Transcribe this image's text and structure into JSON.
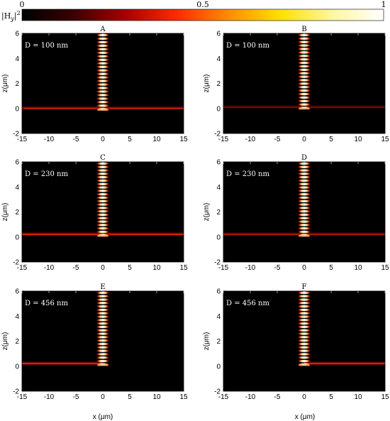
{
  "colorbar": {
    "label": "|H",
    "label_sub": "y",
    "label_sup": "2",
    "ticks": [
      "0",
      "0.5",
      "1"
    ],
    "colors": [
      "#000000",
      "#3b0000",
      "#a80000",
      "#ff2a00",
      "#ff8c00",
      "#ffe100",
      "#fff6a0",
      "#ffffff"
    ]
  },
  "axes_text": {
    "xlabel": "x (μm)",
    "ylabel": "z(μm)",
    "xticks": [
      "-15",
      "-10",
      "-5",
      "0",
      "5",
      "10",
      "15"
    ],
    "yticks": [
      "-2",
      "0",
      "2",
      "4",
      "6"
    ]
  },
  "chart_data": [
    {
      "type": "heatmap",
      "title": "A",
      "annotation": "D = 100 nm",
      "xlim": [
        -15,
        15
      ],
      "ylim": [
        -2,
        6
      ],
      "beam_center": 0,
      "beam_width": 2.5,
      "interface_z": 0,
      "interface_from": -15,
      "interface_to": 15,
      "interface_intensity": 0.7
    },
    {
      "type": "heatmap",
      "title": "B",
      "annotation": "D = 100 nm",
      "xlim": [
        -15,
        15
      ],
      "ylim": [
        -2,
        6
      ],
      "beam_center": 0,
      "beam_width": 2.5,
      "interface_z": 0.1,
      "interface_from": -15,
      "interface_to": 15,
      "interface_intensity": 0.35
    },
    {
      "type": "heatmap",
      "title": "C",
      "annotation": "D = 230 nm",
      "xlim": [
        -15,
        15
      ],
      "ylim": [
        -2,
        6
      ],
      "beam_center": 0,
      "beam_width": 2.5,
      "interface_z": 0.2,
      "interface_from": -15,
      "interface_to": 15,
      "interface_intensity": 0.75
    },
    {
      "type": "heatmap",
      "title": "D",
      "annotation": "D = 230 nm",
      "xlim": [
        -15,
        15
      ],
      "ylim": [
        -2,
        6
      ],
      "beam_center": 0,
      "beam_width": 2.5,
      "interface_z": 0.2,
      "interface_from": -15,
      "interface_to": 15,
      "interface_intensity": 0.55
    },
    {
      "type": "heatmap",
      "title": "E",
      "annotation": "D = 456 nm",
      "xlim": [
        -15,
        15
      ],
      "ylim": [
        -2,
        6
      ],
      "beam_center": 0,
      "beam_width": 2.5,
      "interface_z": 0.2,
      "interface_from": -15,
      "interface_to": 0,
      "interface_intensity": 0.8
    },
    {
      "type": "heatmap",
      "title": "F",
      "annotation": "D = 456 nm",
      "xlim": [
        -15,
        15
      ],
      "ylim": [
        -2,
        6
      ],
      "beam_center": 0,
      "beam_width": 2.5,
      "interface_z": 0.2,
      "interface_from": 0,
      "interface_to": 15,
      "interface_intensity": 0.8
    }
  ]
}
